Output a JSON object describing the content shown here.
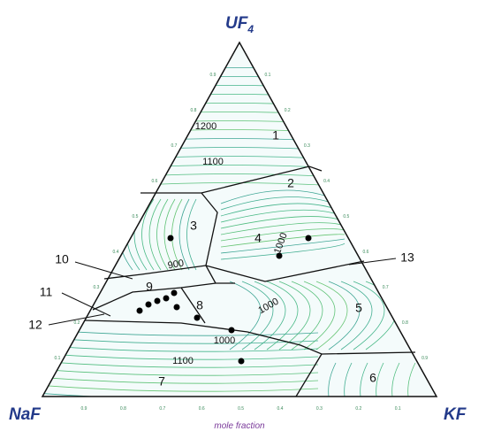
{
  "vertices": {
    "top": "UF",
    "top_sub": "4",
    "left": "NaF",
    "right": "KF"
  },
  "axis_label": "mole fraction",
  "bottom_ticks": [
    "0.9",
    "0.8",
    "0.7",
    "0.6",
    "0.5",
    "0.4",
    "0.3",
    "0.2",
    "0.1"
  ],
  "left_ticks": [
    "0.9",
    "0.8",
    "0.7",
    "0.6",
    "0.5",
    "0.4",
    "0.3",
    "0.2",
    "0.1"
  ],
  "right_ticks": [
    "0.1",
    "0.2",
    "0.3",
    "0.4",
    "0.5",
    "0.6",
    "0.7",
    "0.8",
    "0.9"
  ],
  "regions": [
    "1",
    "2",
    "3",
    "4",
    "5",
    "6",
    "7",
    "8",
    "9"
  ],
  "callouts": [
    "10",
    "11",
    "12",
    "13"
  ],
  "contour_labels": [
    "1200",
    "1100",
    "900",
    "1000",
    "1000",
    "1000",
    "1100"
  ]
}
